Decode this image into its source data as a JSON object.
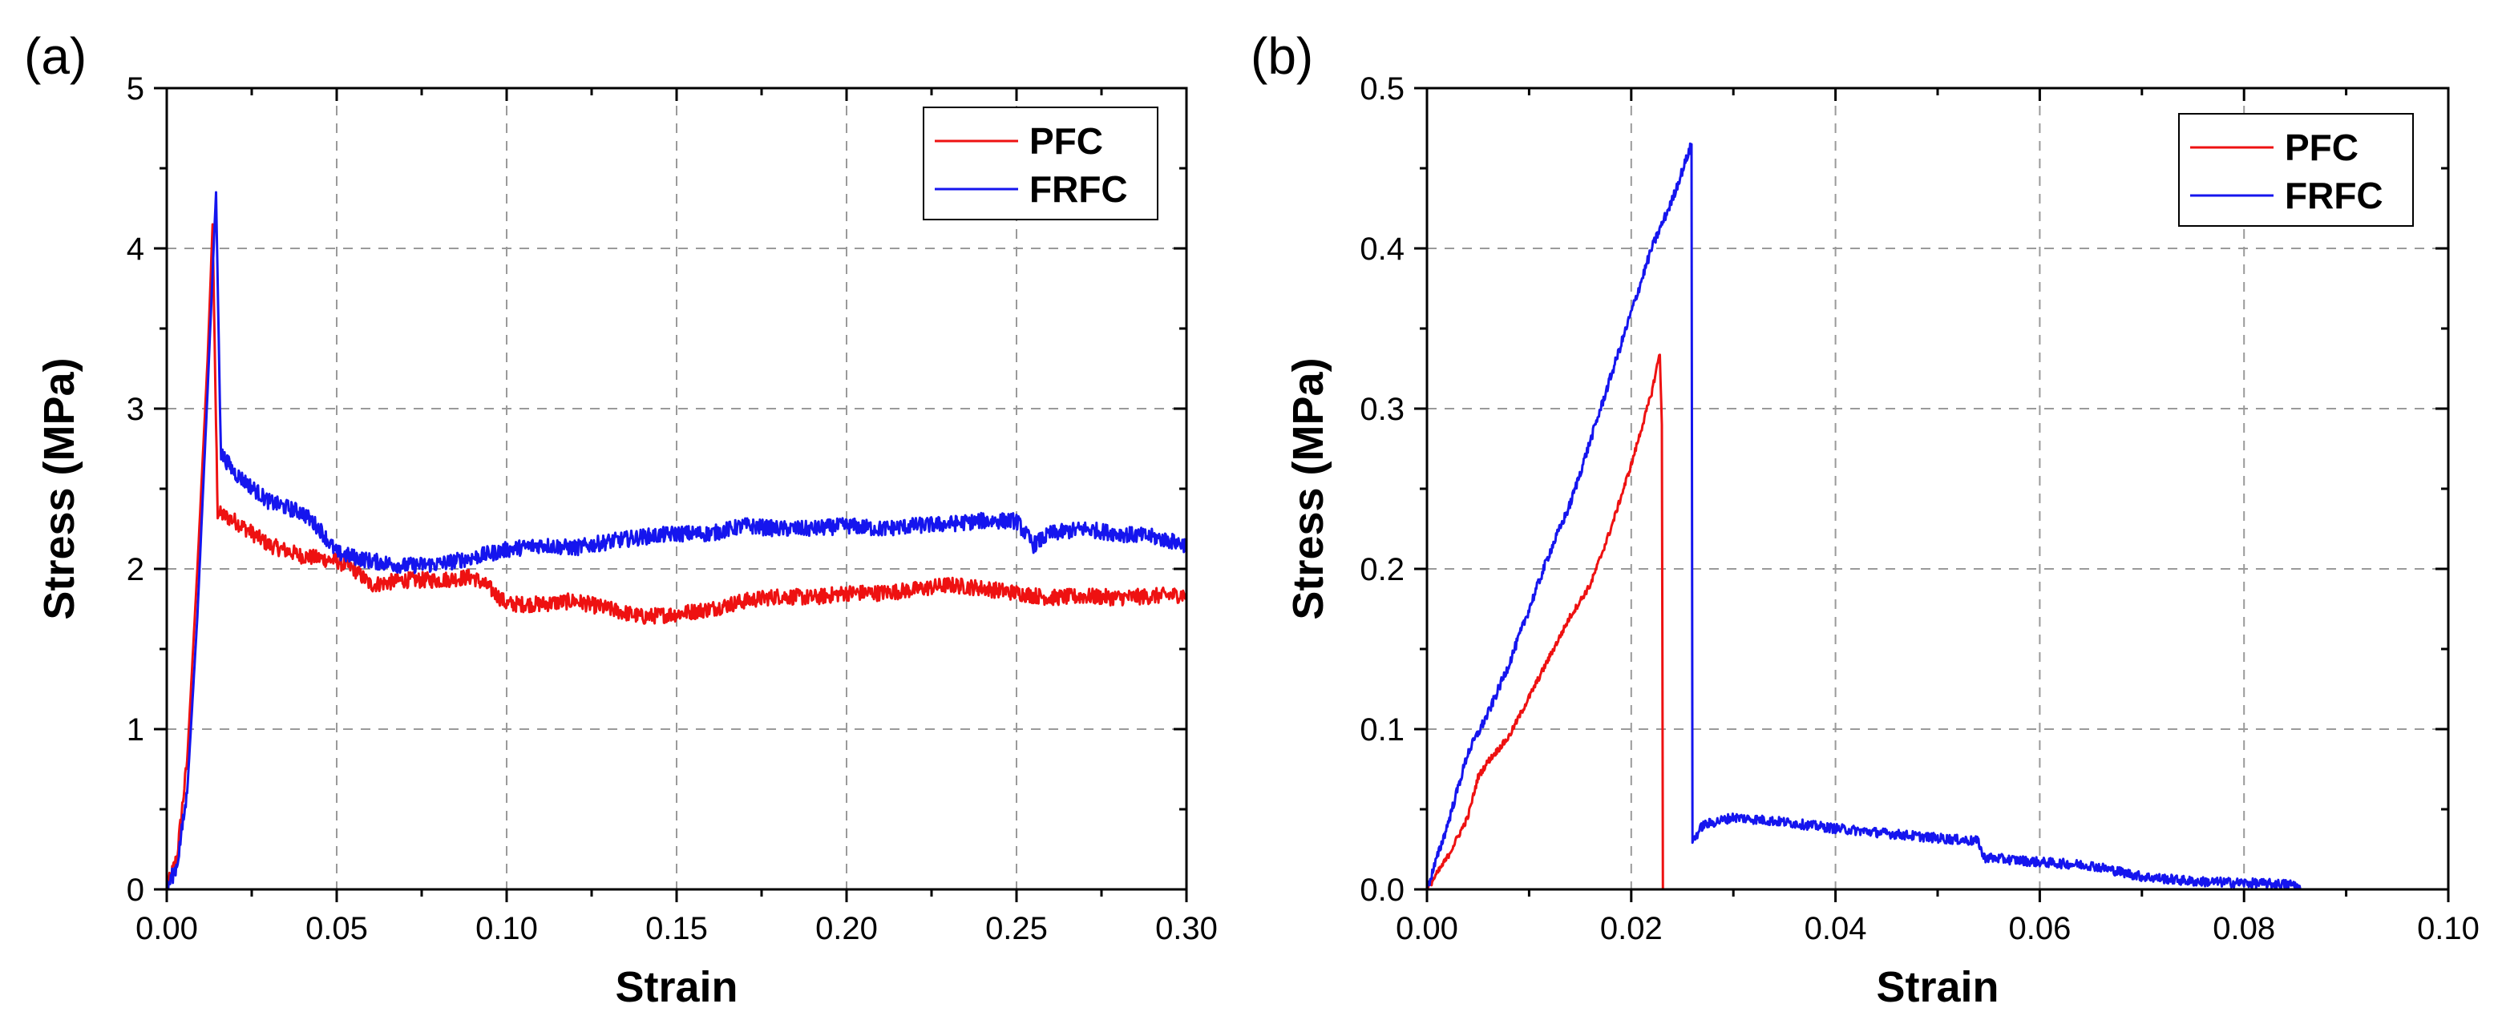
{
  "colors": {
    "pfc": "#ee1111",
    "frfc": "#1515ee",
    "grid": "#9a9a9a",
    "axis": "#000000"
  },
  "chart_data": [
    {
      "panel_label": "(a)",
      "type": "line",
      "title": "",
      "xlabel": "Strain",
      "ylabel": "Stress (MPa)",
      "xlim": [
        0.0,
        0.3
      ],
      "ylim": [
        0,
        5
      ],
      "xticks": [
        "0.00",
        "0.05",
        "0.10",
        "0.15",
        "0.20",
        "0.25",
        "0.30"
      ],
      "yticks": [
        "0",
        "1",
        "2",
        "3",
        "4",
        "5"
      ],
      "grid": true,
      "legend_position": "top-right",
      "series": [
        {
          "name": "PFC",
          "color": "#ee1111",
          "noise": 0.05,
          "points": [
            [
              0,
              0
            ],
            [
              0.003,
              0.2
            ],
            [
              0.006,
              0.8
            ],
            [
              0.009,
              2.0
            ],
            [
              0.012,
              3.3
            ],
            [
              0.0135,
              4.15
            ],
            [
              0.0145,
              2.9
            ],
            [
              0.015,
              2.35
            ],
            [
              0.02,
              2.3
            ],
            [
              0.03,
              2.15
            ],
            [
              0.04,
              2.08
            ],
            [
              0.05,
              2.05
            ],
            [
              0.055,
              2.0
            ],
            [
              0.06,
              1.9
            ],
            [
              0.07,
              1.93
            ],
            [
              0.08,
              1.93
            ],
            [
              0.09,
              1.95
            ],
            [
              0.095,
              1.88
            ],
            [
              0.1,
              1.78
            ],
            [
              0.11,
              1.78
            ],
            [
              0.12,
              1.8
            ],
            [
              0.13,
              1.75
            ],
            [
              0.14,
              1.7
            ],
            [
              0.15,
              1.72
            ],
            [
              0.16,
              1.75
            ],
            [
              0.17,
              1.8
            ],
            [
              0.18,
              1.83
            ],
            [
              0.19,
              1.82
            ],
            [
              0.2,
              1.85
            ],
            [
              0.21,
              1.85
            ],
            [
              0.22,
              1.87
            ],
            [
              0.23,
              1.9
            ],
            [
              0.24,
              1.88
            ],
            [
              0.25,
              1.85
            ],
            [
              0.26,
              1.82
            ],
            [
              0.27,
              1.83
            ],
            [
              0.28,
              1.82
            ],
            [
              0.29,
              1.83
            ],
            [
              0.3,
              1.84
            ]
          ]
        },
        {
          "name": "FRFC",
          "color": "#1515ee",
          "noise": 0.05,
          "points": [
            [
              0,
              0
            ],
            [
              0.003,
              0.15
            ],
            [
              0.006,
              0.6
            ],
            [
              0.009,
              1.7
            ],
            [
              0.012,
              3.1
            ],
            [
              0.0145,
              4.35
            ],
            [
              0.0155,
              3.2
            ],
            [
              0.016,
              2.72
            ],
            [
              0.02,
              2.6
            ],
            [
              0.03,
              2.42
            ],
            [
              0.04,
              2.35
            ],
            [
              0.045,
              2.25
            ],
            [
              0.05,
              2.1
            ],
            [
              0.06,
              2.05
            ],
            [
              0.07,
              2.02
            ],
            [
              0.08,
              2.03
            ],
            [
              0.09,
              2.07
            ],
            [
              0.1,
              2.12
            ],
            [
              0.11,
              2.15
            ],
            [
              0.12,
              2.13
            ],
            [
              0.13,
              2.17
            ],
            [
              0.14,
              2.2
            ],
            [
              0.15,
              2.22
            ],
            [
              0.16,
              2.22
            ],
            [
              0.17,
              2.27
            ],
            [
              0.18,
              2.25
            ],
            [
              0.19,
              2.25
            ],
            [
              0.2,
              2.27
            ],
            [
              0.21,
              2.25
            ],
            [
              0.22,
              2.27
            ],
            [
              0.23,
              2.28
            ],
            [
              0.24,
              2.3
            ],
            [
              0.25,
              2.3
            ],
            [
              0.255,
              2.15
            ],
            [
              0.26,
              2.22
            ],
            [
              0.27,
              2.25
            ],
            [
              0.28,
              2.22
            ],
            [
              0.29,
              2.2
            ],
            [
              0.3,
              2.15
            ]
          ]
        }
      ]
    },
    {
      "panel_label": "(b)",
      "type": "line",
      "title": "",
      "xlabel": "Strain",
      "ylabel": "Stress (MPa)",
      "xlim": [
        0.0,
        0.1
      ],
      "ylim": [
        0.0,
        0.5
      ],
      "xticks": [
        "0.00",
        "0.02",
        "0.04",
        "0.06",
        "0.08",
        "0.10"
      ],
      "yticks": [
        "0.0",
        "0.1",
        "0.2",
        "0.3",
        "0.4",
        "0.5"
      ],
      "grid": true,
      "legend_position": "top-right",
      "series": [
        {
          "name": "PFC",
          "color": "#ee1111",
          "noise": 0.002,
          "points": [
            [
              0,
              0
            ],
            [
              0.002,
              0.02
            ],
            [
              0.004,
              0.045
            ],
            [
              0.005,
              0.07
            ],
            [
              0.006,
              0.08
            ],
            [
              0.008,
              0.095
            ],
            [
              0.01,
              0.12
            ],
            [
              0.012,
              0.145
            ],
            [
              0.014,
              0.17
            ],
            [
              0.016,
              0.19
            ],
            [
              0.018,
              0.225
            ],
            [
              0.02,
              0.265
            ],
            [
              0.022,
              0.31
            ],
            [
              0.0228,
              0.335
            ],
            [
              0.023,
              0.29
            ],
            [
              0.0231,
              0.0
            ],
            [
              0.0232,
              0.0
            ]
          ]
        },
        {
          "name": "FRFC",
          "color": "#1515ee",
          "noise": 0.003,
          "points": [
            [
              0,
              0
            ],
            [
              0.002,
              0.04
            ],
            [
              0.004,
              0.085
            ],
            [
              0.006,
              0.11
            ],
            [
              0.008,
              0.14
            ],
            [
              0.01,
              0.175
            ],
            [
              0.012,
              0.21
            ],
            [
              0.014,
              0.24
            ],
            [
              0.016,
              0.28
            ],
            [
              0.018,
              0.32
            ],
            [
              0.02,
              0.36
            ],
            [
              0.022,
              0.4
            ],
            [
              0.024,
              0.43
            ],
            [
              0.0259,
              0.465
            ],
            [
              0.026,
              0.03
            ],
            [
              0.027,
              0.04
            ],
            [
              0.03,
              0.045
            ],
            [
              0.035,
              0.042
            ],
            [
              0.04,
              0.038
            ],
            [
              0.045,
              0.035
            ],
            [
              0.05,
              0.032
            ],
            [
              0.054,
              0.03
            ],
            [
              0.0545,
              0.02
            ],
            [
              0.06,
              0.017
            ],
            [
              0.065,
              0.015
            ],
            [
              0.07,
              0.008
            ],
            [
              0.075,
              0.005
            ],
            [
              0.08,
              0.004
            ],
            [
              0.085,
              0.003
            ],
            [
              0.0855,
              0.0
            ]
          ]
        }
      ]
    }
  ]
}
